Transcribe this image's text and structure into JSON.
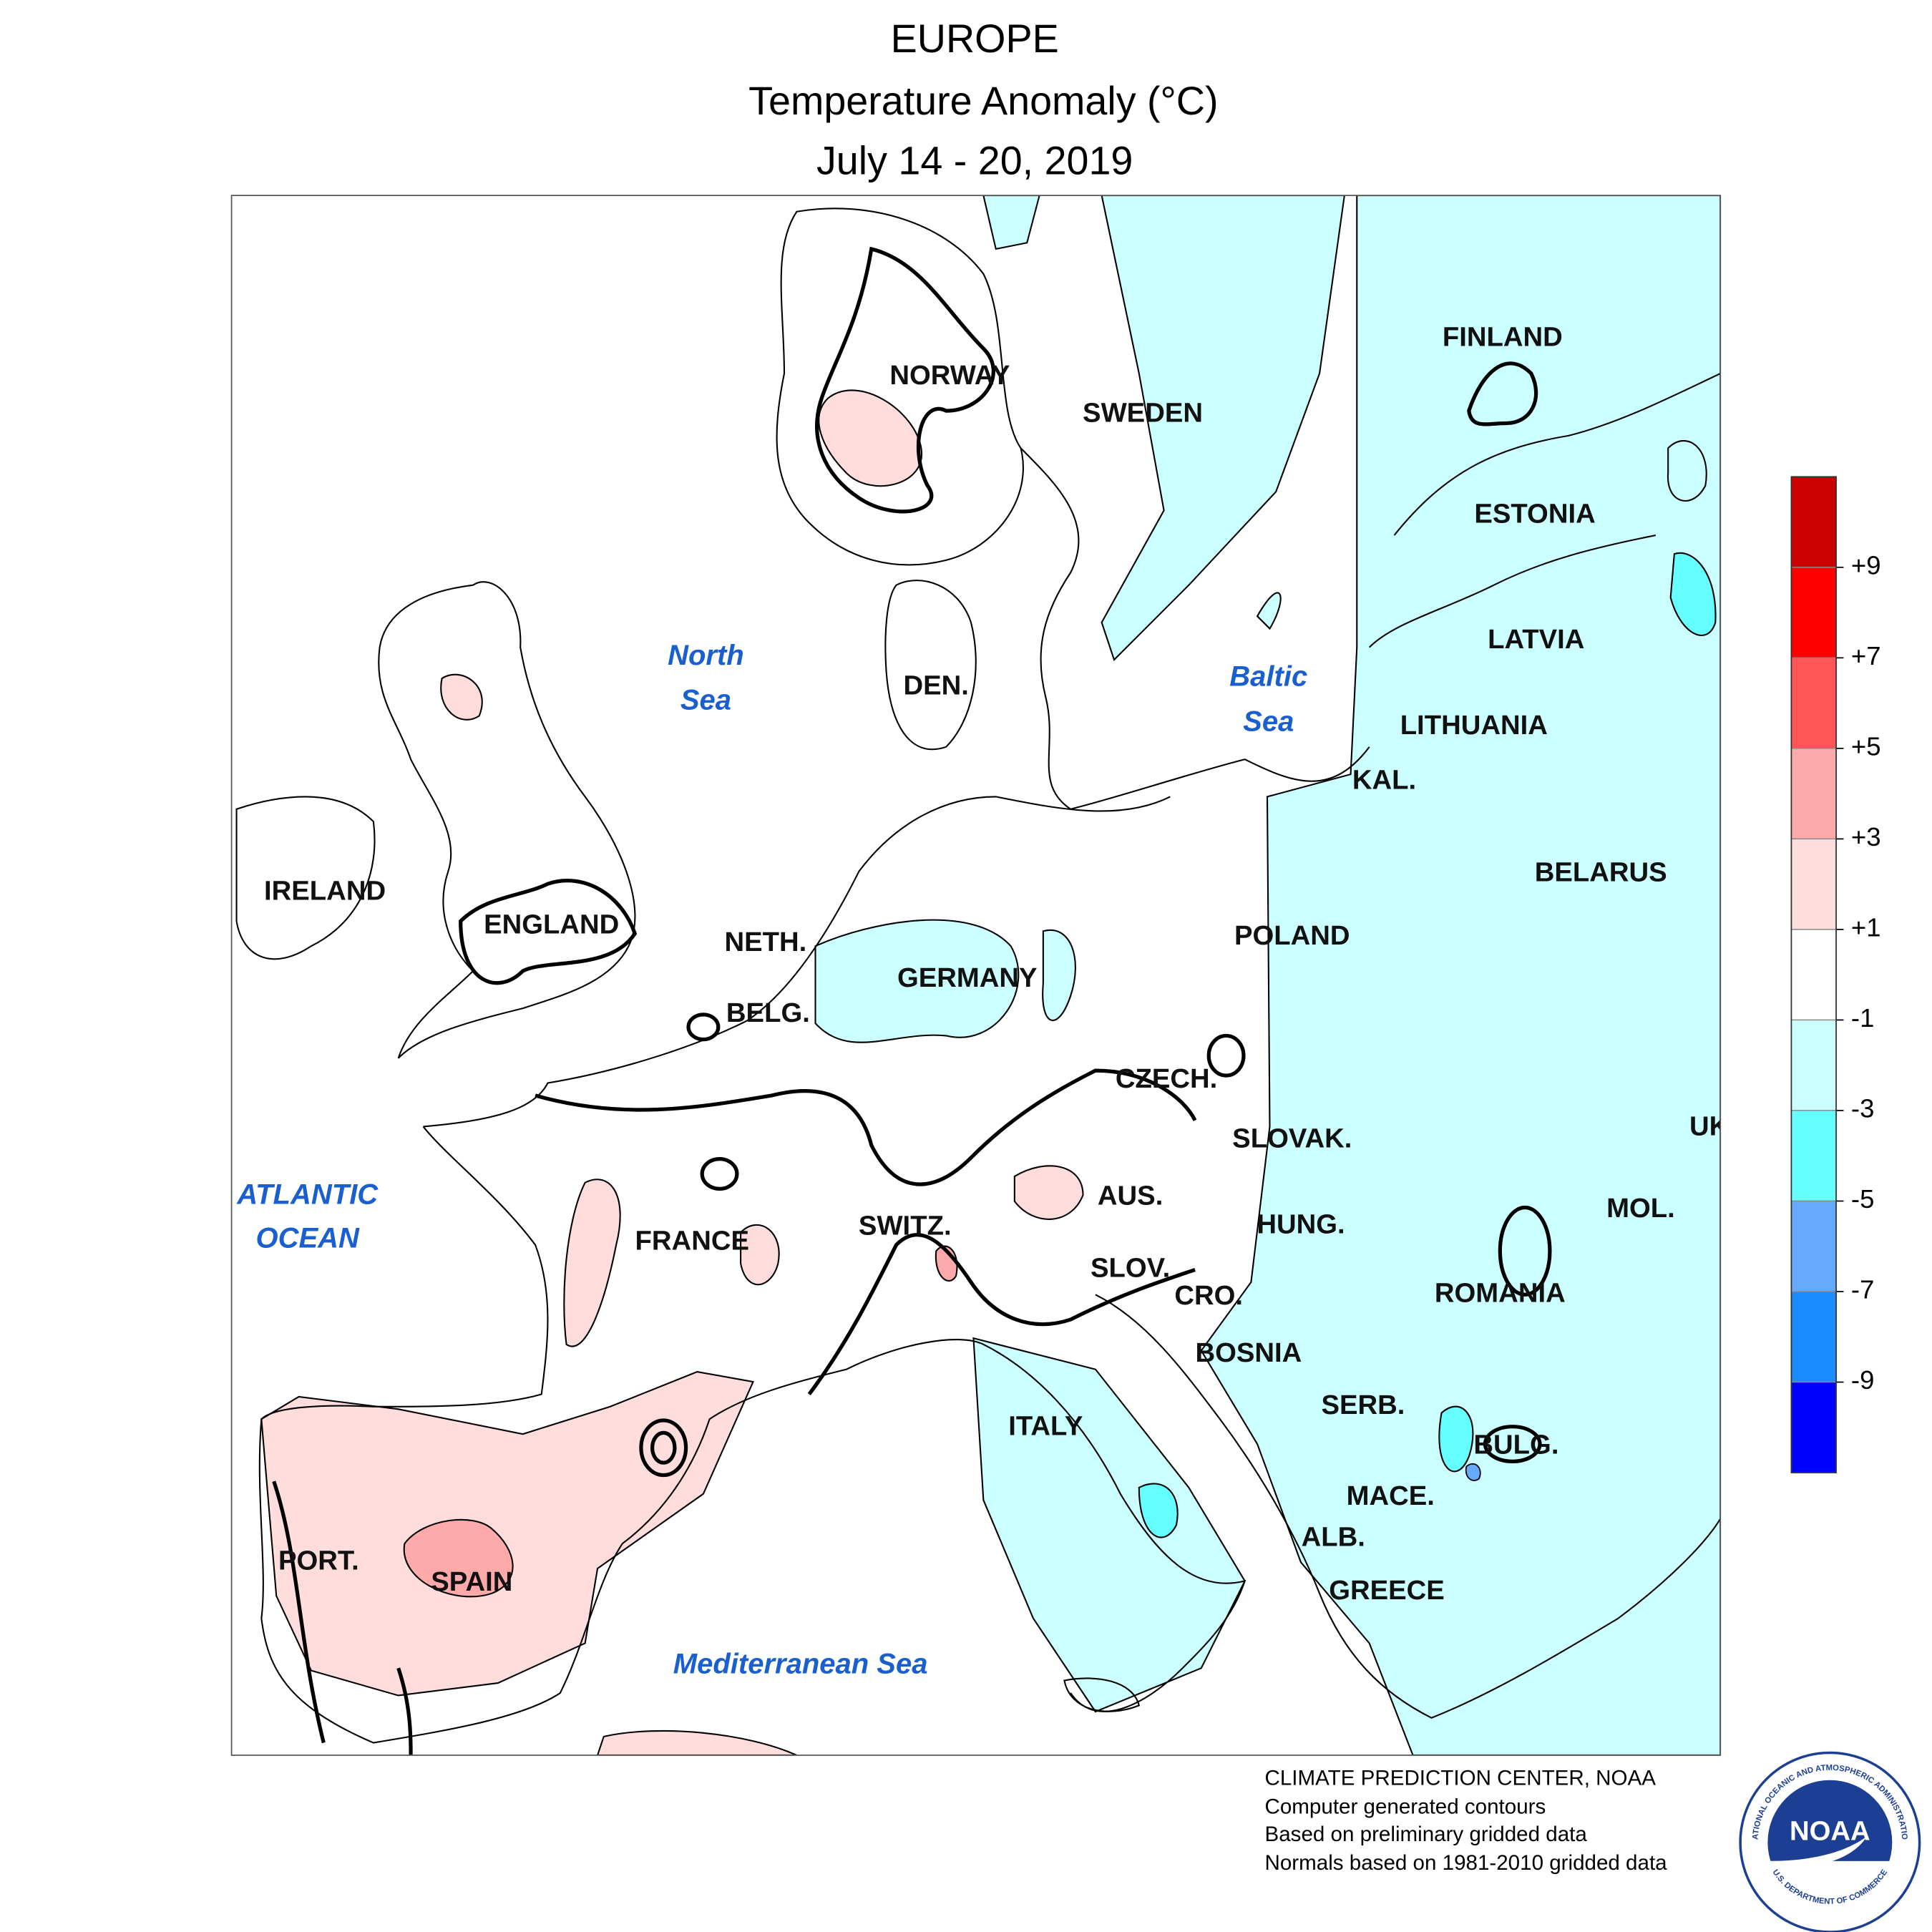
{
  "header": {
    "title": "EUROPE",
    "subtitle": "Temperature Anomaly (°C)",
    "dates": "July 14 - 20, 2019"
  },
  "countries": [
    "NORWAY",
    "SWEDEN",
    "FINLAND",
    "ESTONIA",
    "LATVIA",
    "LITHUANIA",
    "KAL.",
    "BELARUS",
    "POLAND",
    "GERMANY",
    "NETH.",
    "BELG.",
    "IRELAND",
    "ENGLAND",
    "DEN.",
    "CZECH.",
    "SLOVAK.",
    "UK",
    "MOL.",
    "HUNG.",
    "AUS.",
    "SWITZ.",
    "FRANCE",
    "SLOV.",
    "CRO.",
    "ROMANIA",
    "BOSNIA",
    "SERB.",
    "BULG.",
    "ITALY",
    "MACE.",
    "ALB.",
    "GREECE",
    "PORT.",
    "SPAIN"
  ],
  "seas": [
    [
      "North",
      "Sea"
    ],
    [
      "Baltic",
      "Sea"
    ],
    [
      "ATLANTIC",
      "OCEAN"
    ],
    [
      "Mediterranean Sea"
    ]
  ],
  "legend": {
    "colors": [
      "#cc0000",
      "#ff0000",
      "#ff5555",
      "#ffaaaa",
      "#ffdddd",
      "#ffffff",
      "#ccffff",
      "#66ffff",
      "#66aaff",
      "#1a8cff",
      "#0000ff"
    ],
    "ticks": [
      {
        "value": 9,
        "label": "+9"
      },
      {
        "value": 7,
        "label": "+7"
      },
      {
        "value": 5,
        "label": "+5"
      },
      {
        "value": 3,
        "label": "+3"
      },
      {
        "value": 1,
        "label": "+1"
      },
      -1,
      -3,
      -5,
      -7,
      -9
    ]
  },
  "footer": [
    "CLIMATE PREDICTION CENTER, NOAA",
    "Computer generated contours",
    "Based on preliminary gridded data",
    "Normals based on 1981-2010 gridded data"
  ],
  "logo": {
    "text": "NOAA",
    "ring_top": "NATIONAL OCEANIC AND ATMOSPHERIC ADMINISTRATION",
    "ring_bottom": "U.S. DEPARTMENT OF COMMERCE"
  }
}
